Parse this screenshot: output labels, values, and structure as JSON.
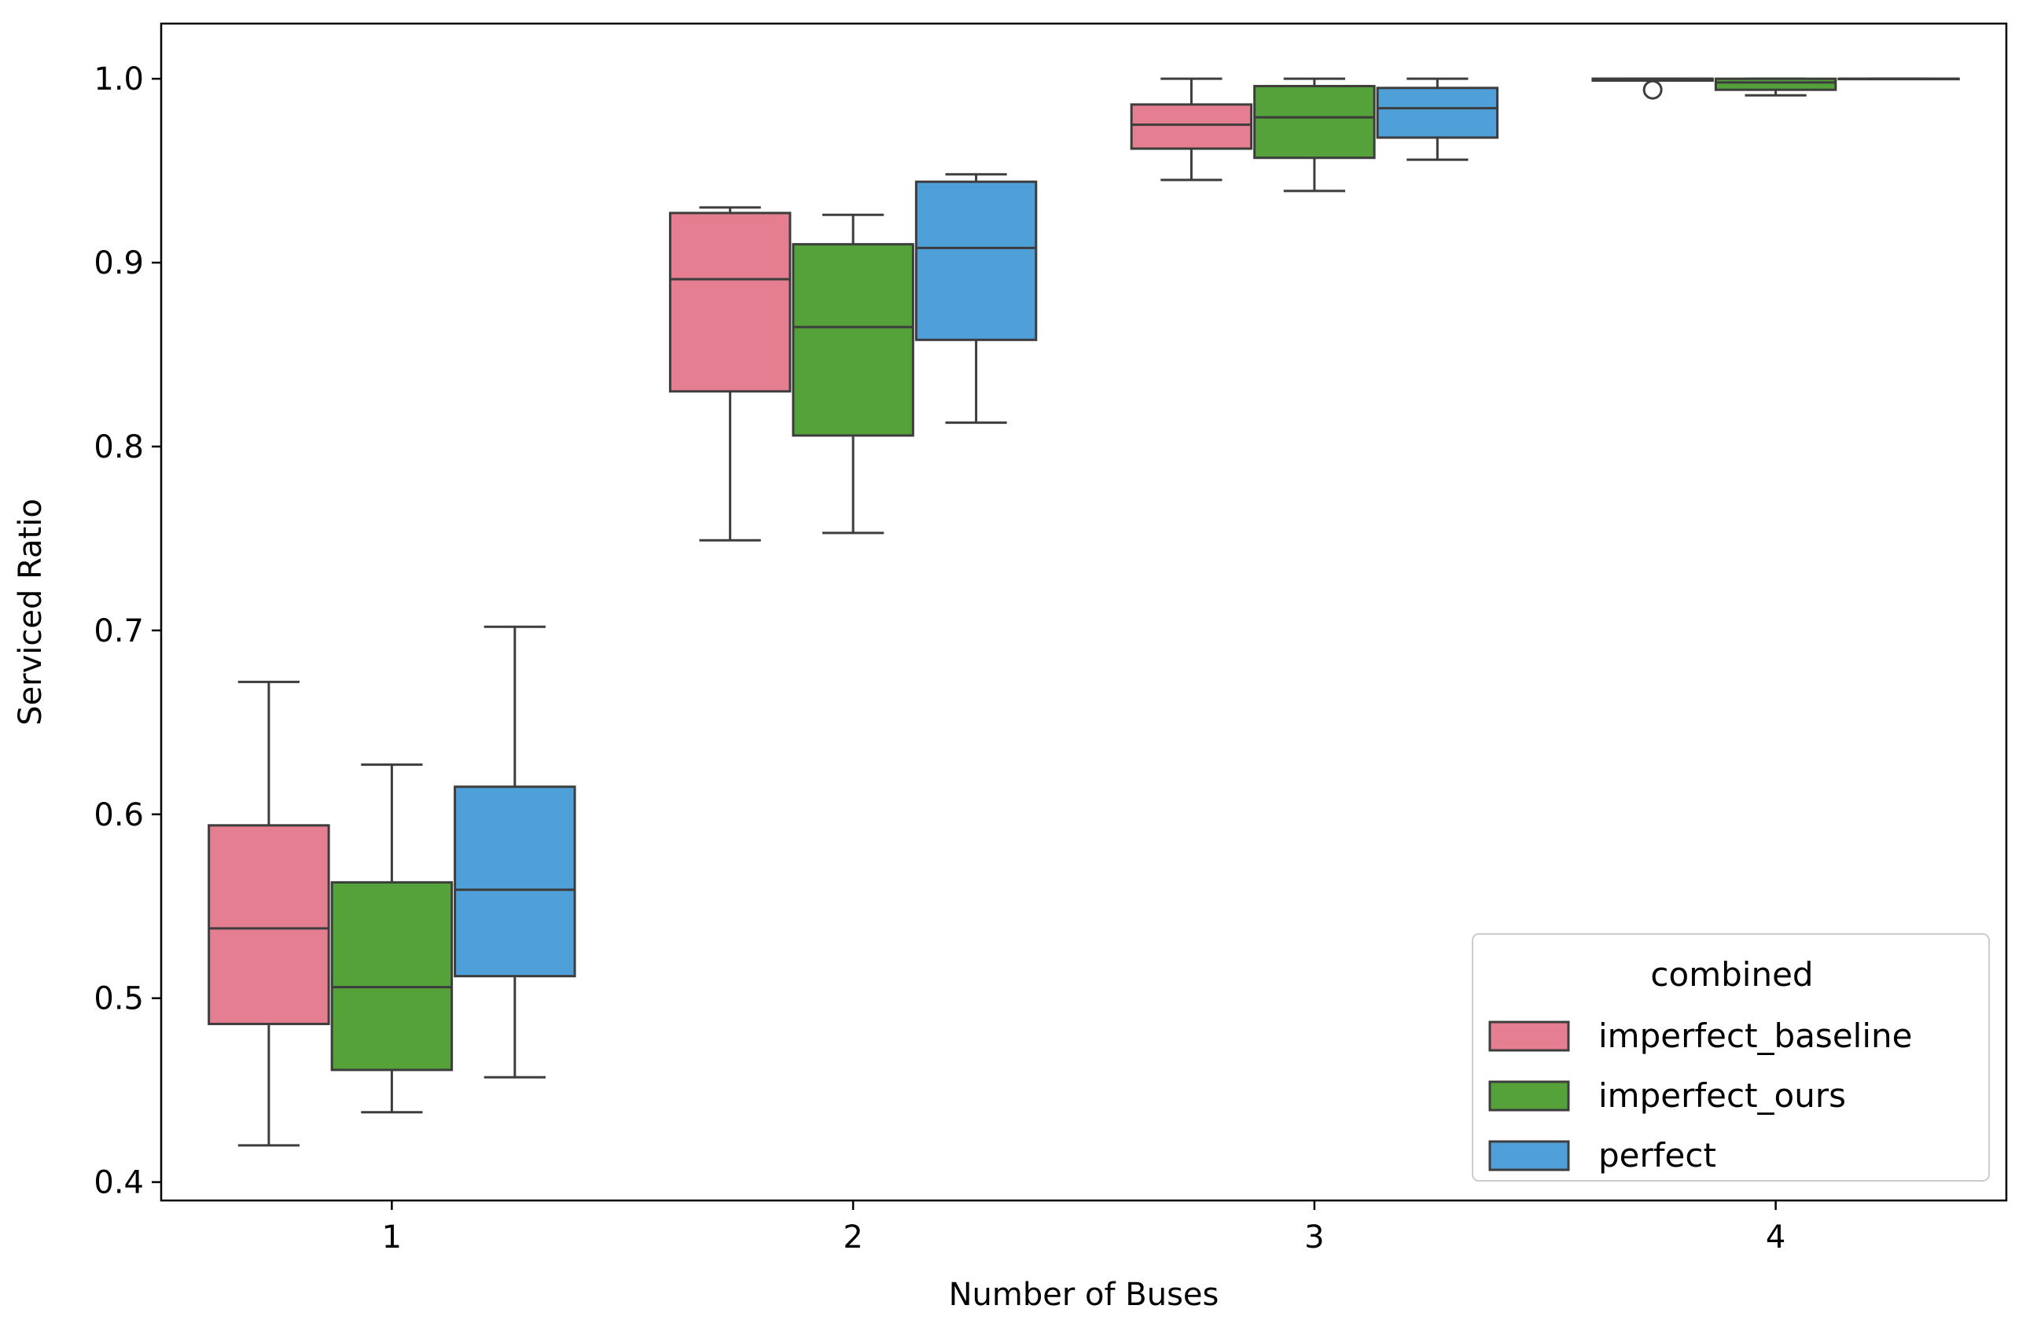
{
  "chart_data": {
    "type": "box",
    "xlabel": "Number of Buses",
    "ylabel": "Serviced Ratio",
    "categories": [
      "1",
      "2",
      "3",
      "4"
    ],
    "ylim": [
      0.39,
      1.03
    ],
    "yticks": [
      0.4,
      0.5,
      0.6,
      0.7,
      0.8,
      0.9,
      1.0
    ],
    "ytick_labels": [
      "0.4",
      "0.5",
      "0.6",
      "0.7",
      "0.8",
      "0.9",
      "1.0"
    ],
    "grid": false,
    "legend": {
      "title": "combined",
      "placement": "lower-right"
    },
    "series": [
      {
        "name": "imperfect_baseline",
        "color": "#e67e91",
        "boxes": [
          {
            "whislo": 0.42,
            "q1": 0.486,
            "med": 0.538,
            "q3": 0.594,
            "whishi": 0.672,
            "fliers": []
          },
          {
            "whislo": 0.749,
            "q1": 0.83,
            "med": 0.891,
            "q3": 0.927,
            "whishi": 0.93,
            "fliers": []
          },
          {
            "whislo": 0.945,
            "q1": 0.962,
            "med": 0.975,
            "q3": 0.986,
            "whishi": 1.0,
            "fliers": []
          },
          {
            "whislo": 0.999,
            "q1": 0.999,
            "med": 1.0,
            "q3": 1.0,
            "whishi": 1.0,
            "fliers": [
              0.994
            ]
          }
        ]
      },
      {
        "name": "imperfect_ours",
        "color": "#55a23b",
        "boxes": [
          {
            "whislo": 0.438,
            "q1": 0.461,
            "med": 0.506,
            "q3": 0.563,
            "whishi": 0.627,
            "fliers": []
          },
          {
            "whislo": 0.753,
            "q1": 0.806,
            "med": 0.865,
            "q3": 0.91,
            "whishi": 0.926,
            "fliers": []
          },
          {
            "whislo": 0.939,
            "q1": 0.957,
            "med": 0.979,
            "q3": 0.996,
            "whishi": 1.0,
            "fliers": []
          },
          {
            "whislo": 0.991,
            "q1": 0.994,
            "med": 0.998,
            "q3": 1.0,
            "whishi": 1.0,
            "fliers": []
          }
        ]
      },
      {
        "name": "perfect",
        "color": "#4f9fd8",
        "boxes": [
          {
            "whislo": 0.457,
            "q1": 0.512,
            "med": 0.559,
            "q3": 0.615,
            "whishi": 0.702,
            "fliers": []
          },
          {
            "whislo": 0.813,
            "q1": 0.858,
            "med": 0.908,
            "q3": 0.944,
            "whishi": 0.948,
            "fliers": []
          },
          {
            "whislo": 0.956,
            "q1": 0.968,
            "med": 0.984,
            "q3": 0.995,
            "whishi": 1.0,
            "fliers": []
          },
          {
            "whislo": 1.0,
            "q1": 1.0,
            "med": 1.0,
            "q3": 1.0,
            "whishi": 1.0,
            "fliers": []
          }
        ]
      }
    ]
  }
}
